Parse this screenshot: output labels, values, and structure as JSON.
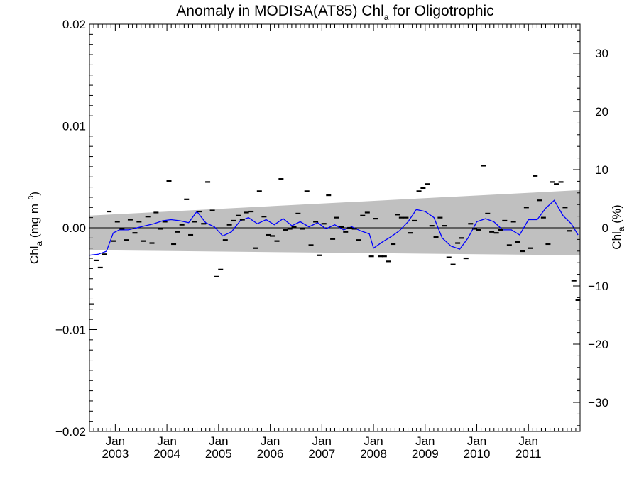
{
  "chart_data": {
    "type": "scatter",
    "title": {
      "main": "Anomaly in MODISA(AT85) Chl",
      "sub": "a",
      "tail": " for Oligotrophic"
    },
    "ylabel_left": {
      "main": "Chl",
      "sub": "a",
      "mid": " (mg m",
      "sup": "−3",
      "end": ")"
    },
    "ylabel_right": {
      "main": "Chl",
      "sub": "a",
      "end": " (%)"
    },
    "ylim_left": [
      -0.02,
      0.02
    ],
    "ylim_right": [
      -35,
      35
    ],
    "y_ticks_left": [
      "0.02",
      "0.01",
      "0.00",
      "−0.01",
      "−0.02"
    ],
    "y_ticks_right": [
      "30",
      "20",
      "10",
      "0",
      "−10",
      "−20",
      "−30"
    ],
    "xlim": [
      2002.5,
      2012.0
    ],
    "x_ticks": [
      {
        "month": "Jan",
        "year": "2003"
      },
      {
        "month": "Jan",
        "year": "2004"
      },
      {
        "month": "Jan",
        "year": "2005"
      },
      {
        "month": "Jan",
        "year": "2006"
      },
      {
        "month": "Jan",
        "year": "2007"
      },
      {
        "month": "Jan",
        "year": "2008"
      },
      {
        "month": "Jan",
        "year": "2009"
      },
      {
        "month": "Jan",
        "year": "2010"
      },
      {
        "month": "Jan",
        "year": "2011"
      }
    ],
    "zero_line": true,
    "trend_band": {
      "start_low": -0.0022,
      "start_high": 0.0012,
      "end_low": -0.0027,
      "end_high": 0.0037,
      "color": "#c0c0c0"
    },
    "smoothed_color": "#0000ff",
    "points": [
      [
        2002.54,
        -0.0075
      ],
      [
        2002.63,
        -0.0032
      ],
      [
        2002.71,
        -0.0039
      ],
      [
        2002.79,
        -0.0026
      ],
      [
        2002.88,
        0.0016
      ],
      [
        2002.96,
        -0.0013
      ],
      [
        2003.04,
        0.0006
      ],
      [
        2003.13,
        -0.0001
      ],
      [
        2003.21,
        -0.0012
      ],
      [
        2003.29,
        0.0008
      ],
      [
        2003.38,
        -0.0005
      ],
      [
        2003.46,
        0.0006
      ],
      [
        2003.54,
        -0.0013
      ],
      [
        2003.63,
        0.0011
      ],
      [
        2003.71,
        -0.0015
      ],
      [
        2003.79,
        0.0015
      ],
      [
        2003.88,
        -0.0001
      ],
      [
        2003.96,
        0.0006
      ],
      [
        2004.04,
        0.0046
      ],
      [
        2004.13,
        -0.0016
      ],
      [
        2004.21,
        -0.0004
      ],
      [
        2004.29,
        0.0003
      ],
      [
        2004.38,
        0.0028
      ],
      [
        2004.46,
        -0.0007
      ],
      [
        2004.54,
        0.0006
      ],
      [
        2004.63,
        0.0016
      ],
      [
        2004.71,
        0.0004
      ],
      [
        2004.79,
        0.0045
      ],
      [
        2004.88,
        0.0017
      ],
      [
        2004.96,
        -0.0048
      ],
      [
        2005.04,
        -0.0041
      ],
      [
        2005.13,
        -0.0012
      ],
      [
        2005.21,
        0.0003
      ],
      [
        2005.29,
        0.0007
      ],
      [
        2005.38,
        0.0012
      ],
      [
        2005.46,
        0.0008
      ],
      [
        2005.54,
        0.0015
      ],
      [
        2005.63,
        0.0016
      ],
      [
        2005.71,
        -0.002
      ],
      [
        2005.79,
        0.0036
      ],
      [
        2005.88,
        0.0011
      ],
      [
        2005.96,
        -0.0007
      ],
      [
        2006.04,
        -0.0008
      ],
      [
        2006.13,
        -0.0013
      ],
      [
        2006.21,
        0.0048
      ],
      [
        2006.29,
        -0.0002
      ],
      [
        2006.38,
        -0.0001
      ],
      [
        2006.46,
        0.0001
      ],
      [
        2006.54,
        0.0014
      ],
      [
        2006.63,
        -0.0001
      ],
      [
        2006.71,
        0.0036
      ],
      [
        2006.79,
        -0.0017
      ],
      [
        2006.88,
        0.0006
      ],
      [
        2006.96,
        -0.0027
      ],
      [
        2007.04,
        0.0004
      ],
      [
        2007.13,
        0.0032
      ],
      [
        2007.21,
        -0.0011
      ],
      [
        2007.29,
        0.001
      ],
      [
        2007.38,
        0.0001
      ],
      [
        2007.46,
        -0.0004
      ],
      [
        2007.54,
        0.0
      ],
      [
        2007.63,
        -0.0001
      ],
      [
        2007.71,
        -0.0012
      ],
      [
        2007.79,
        0.0012
      ],
      [
        2007.88,
        0.0015
      ],
      [
        2007.96,
        -0.0028
      ],
      [
        2008.04,
        0.0009
      ],
      [
        2008.13,
        -0.0028
      ],
      [
        2008.21,
        -0.0028
      ],
      [
        2008.29,
        -0.0033
      ],
      [
        2008.38,
        -0.0016
      ],
      [
        2008.46,
        0.0013
      ],
      [
        2008.54,
        0.001
      ],
      [
        2008.63,
        0.001
      ],
      [
        2008.71,
        -0.0005
      ],
      [
        2008.79,
        0.0007
      ],
      [
        2008.88,
        0.0036
      ],
      [
        2008.96,
        0.0039
      ],
      [
        2009.04,
        0.0043
      ],
      [
        2009.13,
        0.0002
      ],
      [
        2009.21,
        -0.0009
      ],
      [
        2009.29,
        0.001
      ],
      [
        2009.38,
        0.0002
      ],
      [
        2009.46,
        -0.0029
      ],
      [
        2009.54,
        -0.0036
      ],
      [
        2009.63,
        -0.0015
      ],
      [
        2009.71,
        -0.001
      ],
      [
        2009.79,
        -0.003
      ],
      [
        2009.88,
        0.0004
      ],
      [
        2009.96,
        -0.0001
      ],
      [
        2010.04,
        -0.0002
      ],
      [
        2010.13,
        0.0061
      ],
      [
        2010.21,
        0.0014
      ],
      [
        2010.29,
        -0.0004
      ],
      [
        2010.38,
        -0.0005
      ],
      [
        2010.46,
        -0.0002
      ],
      [
        2010.54,
        0.0007
      ],
      [
        2010.63,
        -0.0017
      ],
      [
        2010.71,
        0.0006
      ],
      [
        2010.79,
        -0.0014
      ],
      [
        2010.88,
        -0.0023
      ],
      [
        2010.96,
        0.002
      ],
      [
        2011.04,
        -0.002
      ],
      [
        2011.13,
        0.0051
      ],
      [
        2011.21,
        0.0027
      ],
      [
        2011.29,
        0.001
      ],
      [
        2011.38,
        -0.0016
      ],
      [
        2011.46,
        0.0045
      ],
      [
        2011.54,
        0.0043
      ],
      [
        2011.63,
        0.0045
      ],
      [
        2011.71,
        0.002
      ],
      [
        2011.79,
        -0.0003
      ],
      [
        2011.88,
        -0.0052
      ],
      [
        2011.96,
        -0.0071
      ]
    ],
    "smoothed": [
      [
        2002.5,
        -0.0027
      ],
      [
        2002.67,
        -0.0026
      ],
      [
        2002.83,
        -0.0023
      ],
      [
        2002.96,
        -0.0005
      ],
      [
        2003.08,
        -0.0002
      ],
      [
        2003.25,
        -0.0002
      ],
      [
        2003.42,
        0.0
      ],
      [
        2003.58,
        0.0002
      ],
      [
        2003.75,
        0.0004
      ],
      [
        2003.92,
        0.0007
      ],
      [
        2004.08,
        0.0008
      ],
      [
        2004.25,
        0.0007
      ],
      [
        2004.42,
        0.0005
      ],
      [
        2004.58,
        0.0016
      ],
      [
        2004.75,
        0.0005
      ],
      [
        2004.92,
        0.0001
      ],
      [
        2005.08,
        -0.0008
      ],
      [
        2005.25,
        -0.0004
      ],
      [
        2005.42,
        0.0007
      ],
      [
        2005.58,
        0.001
      ],
      [
        2005.75,
        0.0004
      ],
      [
        2005.92,
        0.0008
      ],
      [
        2006.08,
        0.0003
      ],
      [
        2006.25,
        0.0009
      ],
      [
        2006.42,
        0.0002
      ],
      [
        2006.58,
        0.0006
      ],
      [
        2006.75,
        0.0001
      ],
      [
        2006.92,
        0.0005
      ],
      [
        2007.08,
        -0.0001
      ],
      [
        2007.25,
        0.0003
      ],
      [
        2007.42,
        -0.0002
      ],
      [
        2007.58,
        0.0001
      ],
      [
        2007.75,
        -0.0003
      ],
      [
        2007.92,
        -0.0006
      ],
      [
        2008.0,
        -0.002
      ],
      [
        2008.17,
        -0.0014
      ],
      [
        2008.33,
        -0.0009
      ],
      [
        2008.5,
        -0.0003
      ],
      [
        2008.67,
        0.0006
      ],
      [
        2008.83,
        0.0018
      ],
      [
        2009.0,
        0.0016
      ],
      [
        2009.17,
        0.001
      ],
      [
        2009.33,
        -0.001
      ],
      [
        2009.5,
        -0.0018
      ],
      [
        2009.67,
        -0.0021
      ],
      [
        2009.83,
        -0.001
      ],
      [
        2010.0,
        0.0006
      ],
      [
        2010.17,
        0.0009
      ],
      [
        2010.33,
        0.0006
      ],
      [
        2010.5,
        -0.0002
      ],
      [
        2010.67,
        -0.0002
      ],
      [
        2010.83,
        -0.0007
      ],
      [
        2011.0,
        0.0008
      ],
      [
        2011.17,
        0.0008
      ],
      [
        2011.33,
        0.0019
      ],
      [
        2011.5,
        0.0027
      ],
      [
        2011.67,
        0.0012
      ],
      [
        2011.83,
        0.0004
      ],
      [
        2011.96,
        -0.0007
      ]
    ]
  }
}
